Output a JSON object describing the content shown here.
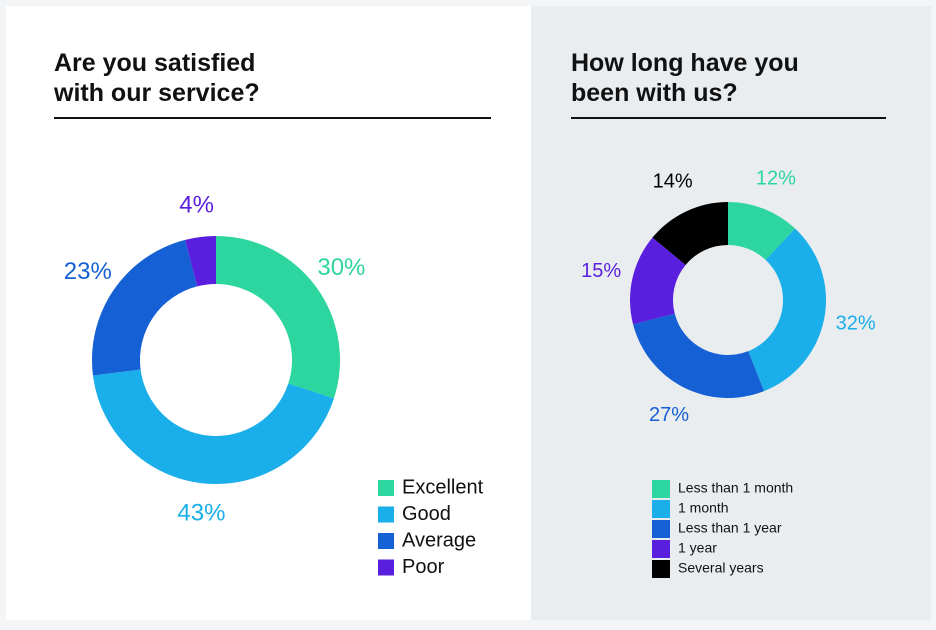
{
  "chart_data": [
    {
      "type": "donut",
      "title": "Are you satisfied\nwith our service?",
      "categories": [
        "Excellent",
        "Good",
        "Average",
        "Poor"
      ],
      "values": [
        30,
        43,
        23,
        4
      ],
      "value_labels": [
        "30%",
        "43%",
        "23%",
        "4%"
      ],
      "colors": [
        "#2dd59f",
        "#1aaeea",
        "#1560d4",
        "#5a1fde"
      ]
    },
    {
      "type": "donut",
      "title": "How long have you\nbeen with us?",
      "categories": [
        "Less than 1 month",
        "1 month",
        "Less than 1 year",
        "1 year",
        "Several years"
      ],
      "values": [
        12,
        32,
        27,
        15,
        14
      ],
      "value_labels": [
        "12%",
        "32%",
        "27%",
        "15%",
        "14%"
      ],
      "colors": [
        "#2dd59f",
        "#1aaeea",
        "#1560d4",
        "#5a1fde",
        "#000000"
      ]
    }
  ]
}
